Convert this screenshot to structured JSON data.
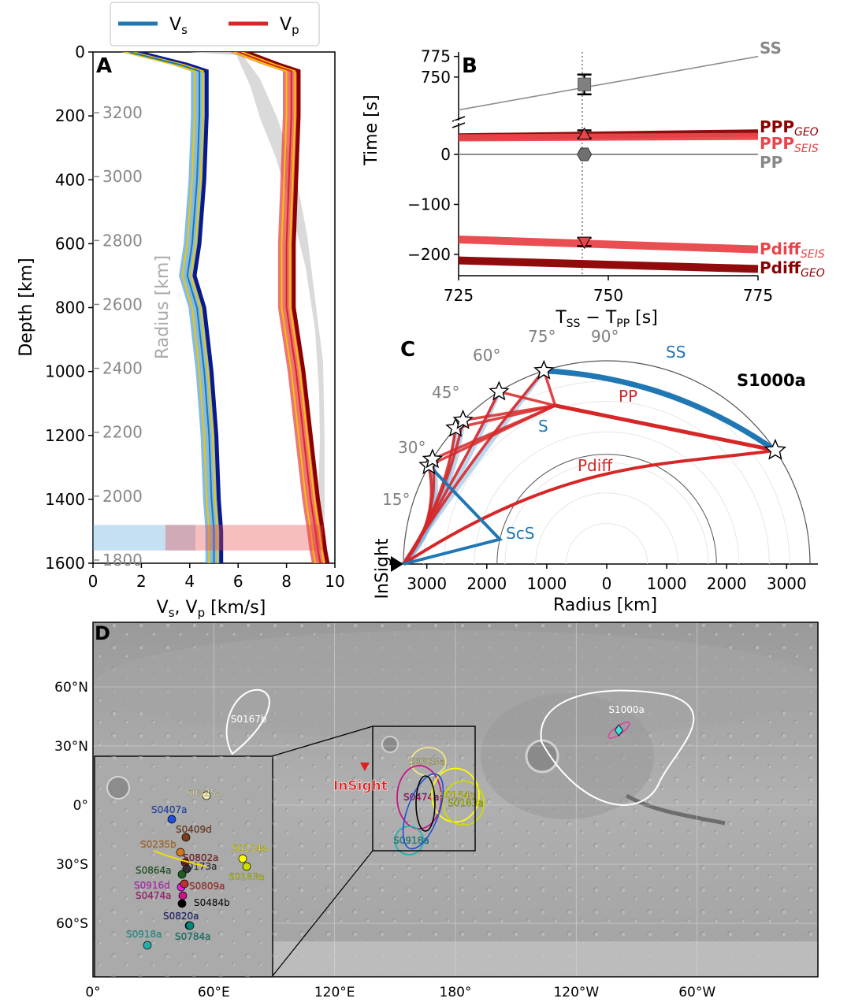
{
  "chart_data": [
    {
      "panel": "A",
      "type": "line",
      "legend": [
        "Vs",
        "Vp"
      ],
      "xlabel": "Vs, Vp [km/s]",
      "ylabel": "Depth [km]",
      "secondary_label": "Radius [km]",
      "xlim": [
        0,
        10
      ],
      "ylim": [
        0,
        1600
      ],
      "x_ticks": [
        "0",
        "2",
        "4",
        "6",
        "8",
        "10"
      ],
      "y_ticks": [
        "0",
        "200",
        "400",
        "600",
        "800",
        "1000",
        "1200",
        "1400",
        "1600"
      ],
      "radius_ticks": [
        "3200",
        "3000",
        "2800",
        "2600",
        "2400",
        "2200",
        "2000",
        "1800"
      ],
      "series": [
        {
          "name": "Vs",
          "color": "#1f77b4",
          "depth": [
            0,
            40,
            60,
            200,
            400,
            600,
            700,
            800,
            1000,
            1100,
            1200,
            1400,
            1500,
            1560,
            1600
          ],
          "values": [
            1.5,
            3.6,
            4.4,
            4.4,
            4.3,
            4.1,
            3.9,
            4.3,
            4.6,
            4.7,
            4.8,
            4.9,
            5.0,
            5.0,
            5.0
          ]
        },
        {
          "name": "Vp",
          "color": "#d62728",
          "depth": [
            0,
            40,
            60,
            200,
            400,
            600,
            800,
            1000,
            1200,
            1400,
            1500,
            1560,
            1600
          ],
          "values": [
            6.0,
            7.4,
            8.2,
            8.2,
            8.1,
            8.0,
            8.0,
            8.4,
            8.7,
            9.0,
            9.2,
            9.3,
            9.4
          ]
        }
      ]
    },
    {
      "panel": "B",
      "type": "line",
      "xlabel": "T_SS − T_PP [s]",
      "ylabel": "Time [s]",
      "xlim": [
        725,
        775
      ],
      "x_ticks": [
        "725",
        "750",
        "775"
      ],
      "y_ticks_upper": [
        "775",
        "750"
      ],
      "y_ticks_lower": [
        "0",
        "−100",
        "−200"
      ],
      "observed_tss_tpp": 746,
      "series": [
        {
          "name": "SS",
          "color": "#888888",
          "x": [
            725,
            775
          ],
          "y": [
            710,
            775
          ]
        },
        {
          "name": "PPP_GEO",
          "color": "#8b0000",
          "x": [
            725,
            775
          ],
          "y": [
            35,
            43
          ]
        },
        {
          "name": "PPP_SEIS",
          "color": "#e8454a",
          "x": [
            725,
            775
          ],
          "y": [
            33,
            36
          ]
        },
        {
          "name": "PP",
          "color": "#888888",
          "x": [
            725,
            775
          ],
          "y": [
            0,
            0
          ]
        },
        {
          "name": "Pdiff_SEIS",
          "color": "#e8454a",
          "x": [
            725,
            775
          ],
          "y": [
            -170,
            -190
          ]
        },
        {
          "name": "Pdiff_GEO",
          "color": "#8b0000",
          "x": [
            725,
            775
          ],
          "y": [
            -212,
            -229
          ]
        }
      ],
      "observations": [
        {
          "phase": "SS",
          "t": 741,
          "err": 12,
          "marker": "square"
        },
        {
          "phase": "PPP",
          "t": 40,
          "err": 8,
          "marker": "triangle-up"
        },
        {
          "phase": "PP",
          "t": 0,
          "err": 0,
          "marker": "hexagon"
        },
        {
          "phase": "Pdiff",
          "t": -175,
          "err": 8,
          "marker": "triangle-down"
        }
      ],
      "phase_labels": [
        {
          "main": "SS",
          "sub": ""
        },
        {
          "main": "PPP",
          "sub": "GEO"
        },
        {
          "main": "PPP",
          "sub": "SEIS"
        },
        {
          "main": "PP",
          "sub": ""
        },
        {
          "main": "Pdiff",
          "sub": "SEIS"
        },
        {
          "main": "Pdiff",
          "sub": "GEO"
        }
      ]
    },
    {
      "panel": "C",
      "type": "scatter",
      "xlabel": "Radius [km]",
      "x_ticks": [
        "3000",
        "2000",
        "1000",
        "0",
        "1000",
        "2000",
        "3000"
      ],
      "angle_labels": [
        "15°",
        "30°",
        "45°",
        "60°",
        "75°",
        "90°"
      ],
      "station": "InSight",
      "event": "S1000a",
      "ray_labels": [
        "SS",
        "PP",
        "S",
        "Pdiff",
        "ScS"
      ],
      "planet_radius_km": 3390,
      "core_radius_km": 1830,
      "bounce_points_deg": [
        29,
        31,
        42,
        45,
        58,
        72
      ],
      "event_distance_deg": 146
    },
    {
      "panel": "D",
      "type": "scatter",
      "lon_ticks": [
        "0°",
        "60°E",
        "120°E",
        "180°",
        "120°W",
        "60°W"
      ],
      "lat_ticks": [
        "60°N",
        "30°N",
        "0°",
        "30°S",
        "60°S"
      ],
      "station": "InSight",
      "events_main": [
        {
          "name": "S0167b",
          "lon": 77,
          "lat": 44,
          "color": "#ffffff"
        },
        {
          "name": "S1000a",
          "lon": 258,
          "lat": 40,
          "color": "#ffffff"
        },
        {
          "name": "S0325a",
          "lon": 165,
          "lat": 22,
          "color": "#f0e68c"
        },
        {
          "name": "S0474a",
          "lon": 162,
          "lat": 4,
          "color": "#c71585"
        },
        {
          "name": "S0154a",
          "lon": 180,
          "lat": 5,
          "color": "#ffff00"
        },
        {
          "name": "S0183a",
          "lon": 184,
          "lat": 1,
          "color": "#ccdd00"
        },
        {
          "name": "S0918a",
          "lon": 157,
          "lat": -18,
          "color": "#20b2aa"
        }
      ],
      "events_inset": [
        {
          "name": "S0325a",
          "color": "#f5f0b5"
        },
        {
          "name": "S0407a",
          "color": "#1f4fd8"
        },
        {
          "name": "S0409d",
          "color": "#7b3f1a"
        },
        {
          "name": "S0235b",
          "color": "#d2781e"
        },
        {
          "name": "S0154a",
          "color": "#ffff00"
        },
        {
          "name": "S0802a",
          "color": "#8b1a1a"
        },
        {
          "name": "S0173a",
          "color": "#333333"
        },
        {
          "name": "S0183a",
          "color": "#ccdd00"
        },
        {
          "name": "S0864a",
          "color": "#1b5e20"
        },
        {
          "name": "S0916d",
          "color": "#e020e0"
        },
        {
          "name": "S0809a",
          "color": "#c03030"
        },
        {
          "name": "S0474a",
          "color": "#c71585"
        },
        {
          "name": "S0484b",
          "color": "#000000"
        },
        {
          "name": "S0820a",
          "color": "#1a237e"
        },
        {
          "name": "S0918a",
          "color": "#20b2aa"
        },
        {
          "name": "S0784a",
          "color": "#00897b"
        }
      ]
    }
  ],
  "panel_letters": [
    "A",
    "B",
    "C",
    "D"
  ]
}
